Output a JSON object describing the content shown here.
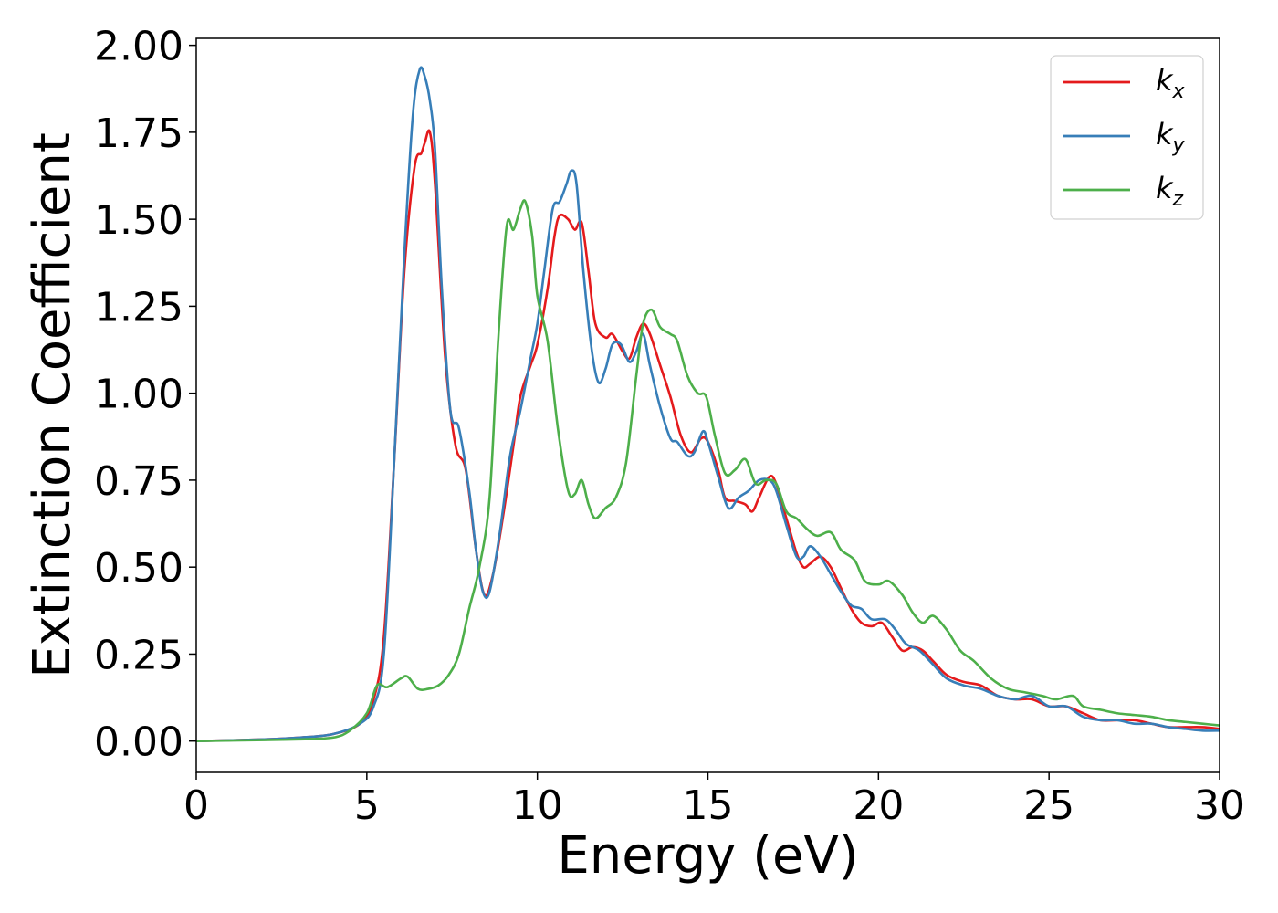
{
  "chart_data": {
    "type": "line",
    "xlabel": "Energy (eV)",
    "ylabel": "Extinction Coefficient",
    "xlim": [
      0,
      30
    ],
    "ylim": [
      -0.09,
      2.02
    ],
    "x_ticks": [
      0,
      5,
      10,
      15,
      20,
      25,
      30
    ],
    "x_tick_labels": [
      "0",
      "5",
      "10",
      "15",
      "20",
      "25",
      "30"
    ],
    "y_ticks": [
      0,
      0.25,
      0.5,
      0.75,
      1.0,
      1.25,
      1.5,
      1.75,
      2.0
    ],
    "y_tick_labels": [
      "0.00",
      "0.25",
      "0.50",
      "0.75",
      "1.00",
      "1.25",
      "1.50",
      "1.75",
      "2.00"
    ],
    "grid": false,
    "legend_position": "top-right",
    "series": [
      {
        "name": "k_x",
        "label_base": "k",
        "label_sub": "x",
        "color": "#e41a1c",
        "points": [
          [
            0,
            0
          ],
          [
            2,
            0.005
          ],
          [
            3,
            0.01
          ],
          [
            4,
            0.02
          ],
          [
            4.8,
            0.05
          ],
          [
            5.2,
            0.12
          ],
          [
            5.5,
            0.3
          ],
          [
            5.8,
            0.8
          ],
          [
            6.1,
            1.35
          ],
          [
            6.4,
            1.65
          ],
          [
            6.6,
            1.69
          ],
          [
            6.7,
            1.72
          ],
          [
            6.85,
            1.75
          ],
          [
            7.0,
            1.6
          ],
          [
            7.3,
            1.1
          ],
          [
            7.6,
            0.85
          ],
          [
            7.9,
            0.78
          ],
          [
            8.2,
            0.55
          ],
          [
            8.45,
            0.42
          ],
          [
            8.7,
            0.48
          ],
          [
            9.0,
            0.65
          ],
          [
            9.3,
            0.85
          ],
          [
            9.5,
            0.99
          ],
          [
            9.8,
            1.08
          ],
          [
            10.0,
            1.14
          ],
          [
            10.3,
            1.3
          ],
          [
            10.5,
            1.45
          ],
          [
            10.65,
            1.51
          ],
          [
            10.9,
            1.5
          ],
          [
            11.1,
            1.47
          ],
          [
            11.3,
            1.49
          ],
          [
            11.5,
            1.35
          ],
          [
            11.7,
            1.2
          ],
          [
            12.0,
            1.16
          ],
          [
            12.2,
            1.17
          ],
          [
            12.5,
            1.12
          ],
          [
            12.7,
            1.1
          ],
          [
            12.9,
            1.16
          ],
          [
            13.1,
            1.2
          ],
          [
            13.3,
            1.17
          ],
          [
            13.6,
            1.08
          ],
          [
            13.9,
            0.99
          ],
          [
            14.2,
            0.88
          ],
          [
            14.5,
            0.83
          ],
          [
            14.8,
            0.87
          ],
          [
            15.0,
            0.86
          ],
          [
            15.3,
            0.78
          ],
          [
            15.5,
            0.7
          ],
          [
            15.8,
            0.69
          ],
          [
            16.1,
            0.68
          ],
          [
            16.3,
            0.66
          ],
          [
            16.5,
            0.7
          ],
          [
            16.8,
            0.76
          ],
          [
            17.0,
            0.74
          ],
          [
            17.3,
            0.64
          ],
          [
            17.6,
            0.54
          ],
          [
            17.8,
            0.5
          ],
          [
            18.0,
            0.51
          ],
          [
            18.3,
            0.53
          ],
          [
            18.6,
            0.5
          ],
          [
            18.9,
            0.44
          ],
          [
            19.2,
            0.38
          ],
          [
            19.5,
            0.34
          ],
          [
            19.8,
            0.33
          ],
          [
            20.1,
            0.34
          ],
          [
            20.4,
            0.3
          ],
          [
            20.7,
            0.26
          ],
          [
            21.0,
            0.27
          ],
          [
            21.3,
            0.26
          ],
          [
            21.6,
            0.23
          ],
          [
            22.0,
            0.19
          ],
          [
            22.5,
            0.17
          ],
          [
            23.0,
            0.16
          ],
          [
            23.5,
            0.13
          ],
          [
            24.0,
            0.12
          ],
          [
            24.5,
            0.12
          ],
          [
            25.0,
            0.1
          ],
          [
            25.5,
            0.1
          ],
          [
            26.0,
            0.08
          ],
          [
            26.5,
            0.06
          ],
          [
            27.0,
            0.06
          ],
          [
            27.5,
            0.06
          ],
          [
            28.0,
            0.05
          ],
          [
            28.5,
            0.04
          ],
          [
            29.0,
            0.04
          ],
          [
            29.5,
            0.04
          ],
          [
            30,
            0.035
          ]
        ]
      },
      {
        "name": "k_y",
        "label_base": "k",
        "label_sub": "y",
        "color": "#377eb8",
        "points": [
          [
            0,
            0
          ],
          [
            2,
            0.005
          ],
          [
            3,
            0.01
          ],
          [
            4,
            0.02
          ],
          [
            4.8,
            0.05
          ],
          [
            5.2,
            0.1
          ],
          [
            5.5,
            0.25
          ],
          [
            5.8,
            0.8
          ],
          [
            6.1,
            1.4
          ],
          [
            6.35,
            1.8
          ],
          [
            6.55,
            1.93
          ],
          [
            6.7,
            1.91
          ],
          [
            6.85,
            1.84
          ],
          [
            7.0,
            1.7
          ],
          [
            7.2,
            1.3
          ],
          [
            7.45,
            0.95
          ],
          [
            7.7,
            0.9
          ],
          [
            8.0,
            0.72
          ],
          [
            8.2,
            0.55
          ],
          [
            8.4,
            0.43
          ],
          [
            8.6,
            0.43
          ],
          [
            8.9,
            0.6
          ],
          [
            9.2,
            0.82
          ],
          [
            9.5,
            0.95
          ],
          [
            9.8,
            1.1
          ],
          [
            10.0,
            1.2
          ],
          [
            10.2,
            1.35
          ],
          [
            10.45,
            1.53
          ],
          [
            10.65,
            1.55
          ],
          [
            10.85,
            1.6
          ],
          [
            11.0,
            1.64
          ],
          [
            11.15,
            1.6
          ],
          [
            11.35,
            1.35
          ],
          [
            11.6,
            1.12
          ],
          [
            11.8,
            1.03
          ],
          [
            12.0,
            1.07
          ],
          [
            12.2,
            1.14
          ],
          [
            12.45,
            1.14
          ],
          [
            12.7,
            1.09
          ],
          [
            12.9,
            1.12
          ],
          [
            13.1,
            1.17
          ],
          [
            13.3,
            1.08
          ],
          [
            13.6,
            0.96
          ],
          [
            13.9,
            0.87
          ],
          [
            14.1,
            0.86
          ],
          [
            14.4,
            0.82
          ],
          [
            14.6,
            0.83
          ],
          [
            14.85,
            0.89
          ],
          [
            15.0,
            0.86
          ],
          [
            15.3,
            0.76
          ],
          [
            15.6,
            0.67
          ],
          [
            15.9,
            0.7
          ],
          [
            16.2,
            0.72
          ],
          [
            16.5,
            0.75
          ],
          [
            16.8,
            0.75
          ],
          [
            17.0,
            0.72
          ],
          [
            17.3,
            0.62
          ],
          [
            17.6,
            0.53
          ],
          [
            17.8,
            0.53
          ],
          [
            18.0,
            0.56
          ],
          [
            18.3,
            0.53
          ],
          [
            18.6,
            0.48
          ],
          [
            18.9,
            0.43
          ],
          [
            19.2,
            0.39
          ],
          [
            19.5,
            0.38
          ],
          [
            19.8,
            0.35
          ],
          [
            20.2,
            0.35
          ],
          [
            20.5,
            0.32
          ],
          [
            20.8,
            0.28
          ],
          [
            21.2,
            0.26
          ],
          [
            21.6,
            0.22
          ],
          [
            22.0,
            0.18
          ],
          [
            22.5,
            0.16
          ],
          [
            23.0,
            0.15
          ],
          [
            23.5,
            0.13
          ],
          [
            24.0,
            0.12
          ],
          [
            24.5,
            0.13
          ],
          [
            25.0,
            0.1
          ],
          [
            25.5,
            0.1
          ],
          [
            26.0,
            0.07
          ],
          [
            26.5,
            0.06
          ],
          [
            27.0,
            0.06
          ],
          [
            27.5,
            0.05
          ],
          [
            28.0,
            0.05
          ],
          [
            28.5,
            0.04
          ],
          [
            29.0,
            0.035
          ],
          [
            29.5,
            0.03
          ],
          [
            30,
            0.03
          ]
        ]
      },
      {
        "name": "k_z",
        "label_base": "k",
        "label_sub": "z",
        "color": "#4daf4a",
        "points": [
          [
            0,
            0
          ],
          [
            2,
            0.003
          ],
          [
            3,
            0.005
          ],
          [
            4,
            0.01
          ],
          [
            4.5,
            0.03
          ],
          [
            5.0,
            0.08
          ],
          [
            5.3,
            0.16
          ],
          [
            5.6,
            0.155
          ],
          [
            6.0,
            0.18
          ],
          [
            6.2,
            0.185
          ],
          [
            6.5,
            0.15
          ],
          [
            6.8,
            0.15
          ],
          [
            7.1,
            0.16
          ],
          [
            7.4,
            0.19
          ],
          [
            7.7,
            0.25
          ],
          [
            8.0,
            0.38
          ],
          [
            8.3,
            0.5
          ],
          [
            8.6,
            0.7
          ],
          [
            8.85,
            1.15
          ],
          [
            9.1,
            1.48
          ],
          [
            9.3,
            1.47
          ],
          [
            9.5,
            1.53
          ],
          [
            9.65,
            1.55
          ],
          [
            9.85,
            1.45
          ],
          [
            10.0,
            1.28
          ],
          [
            10.3,
            1.15
          ],
          [
            10.6,
            0.9
          ],
          [
            10.9,
            0.72
          ],
          [
            11.1,
            0.71
          ],
          [
            11.3,
            0.75
          ],
          [
            11.5,
            0.68
          ],
          [
            11.7,
            0.64
          ],
          [
            12.0,
            0.67
          ],
          [
            12.3,
            0.7
          ],
          [
            12.6,
            0.8
          ],
          [
            12.9,
            1.05
          ],
          [
            13.1,
            1.2
          ],
          [
            13.35,
            1.24
          ],
          [
            13.6,
            1.19
          ],
          [
            13.9,
            1.17
          ],
          [
            14.1,
            1.15
          ],
          [
            14.4,
            1.05
          ],
          [
            14.7,
            1.0
          ],
          [
            14.95,
            0.99
          ],
          [
            15.2,
            0.88
          ],
          [
            15.5,
            0.77
          ],
          [
            15.8,
            0.78
          ],
          [
            16.1,
            0.81
          ],
          [
            16.4,
            0.74
          ],
          [
            16.7,
            0.75
          ],
          [
            17.0,
            0.74
          ],
          [
            17.3,
            0.66
          ],
          [
            17.6,
            0.64
          ],
          [
            17.9,
            0.61
          ],
          [
            18.2,
            0.59
          ],
          [
            18.6,
            0.6
          ],
          [
            18.9,
            0.55
          ],
          [
            19.3,
            0.52
          ],
          [
            19.6,
            0.46
          ],
          [
            20.0,
            0.45
          ],
          [
            20.3,
            0.46
          ],
          [
            20.7,
            0.42
          ],
          [
            21.0,
            0.37
          ],
          [
            21.3,
            0.34
          ],
          [
            21.6,
            0.36
          ],
          [
            22.0,
            0.32
          ],
          [
            22.4,
            0.26
          ],
          [
            22.8,
            0.23
          ],
          [
            23.3,
            0.18
          ],
          [
            23.8,
            0.15
          ],
          [
            24.3,
            0.14
          ],
          [
            24.8,
            0.13
          ],
          [
            25.2,
            0.12
          ],
          [
            25.7,
            0.13
          ],
          [
            26.0,
            0.1
          ],
          [
            26.5,
            0.09
          ],
          [
            27.0,
            0.08
          ],
          [
            27.5,
            0.075
          ],
          [
            28.0,
            0.07
          ],
          [
            28.5,
            0.06
          ],
          [
            29.0,
            0.055
          ],
          [
            29.5,
            0.05
          ],
          [
            30,
            0.045
          ]
        ]
      }
    ]
  }
}
